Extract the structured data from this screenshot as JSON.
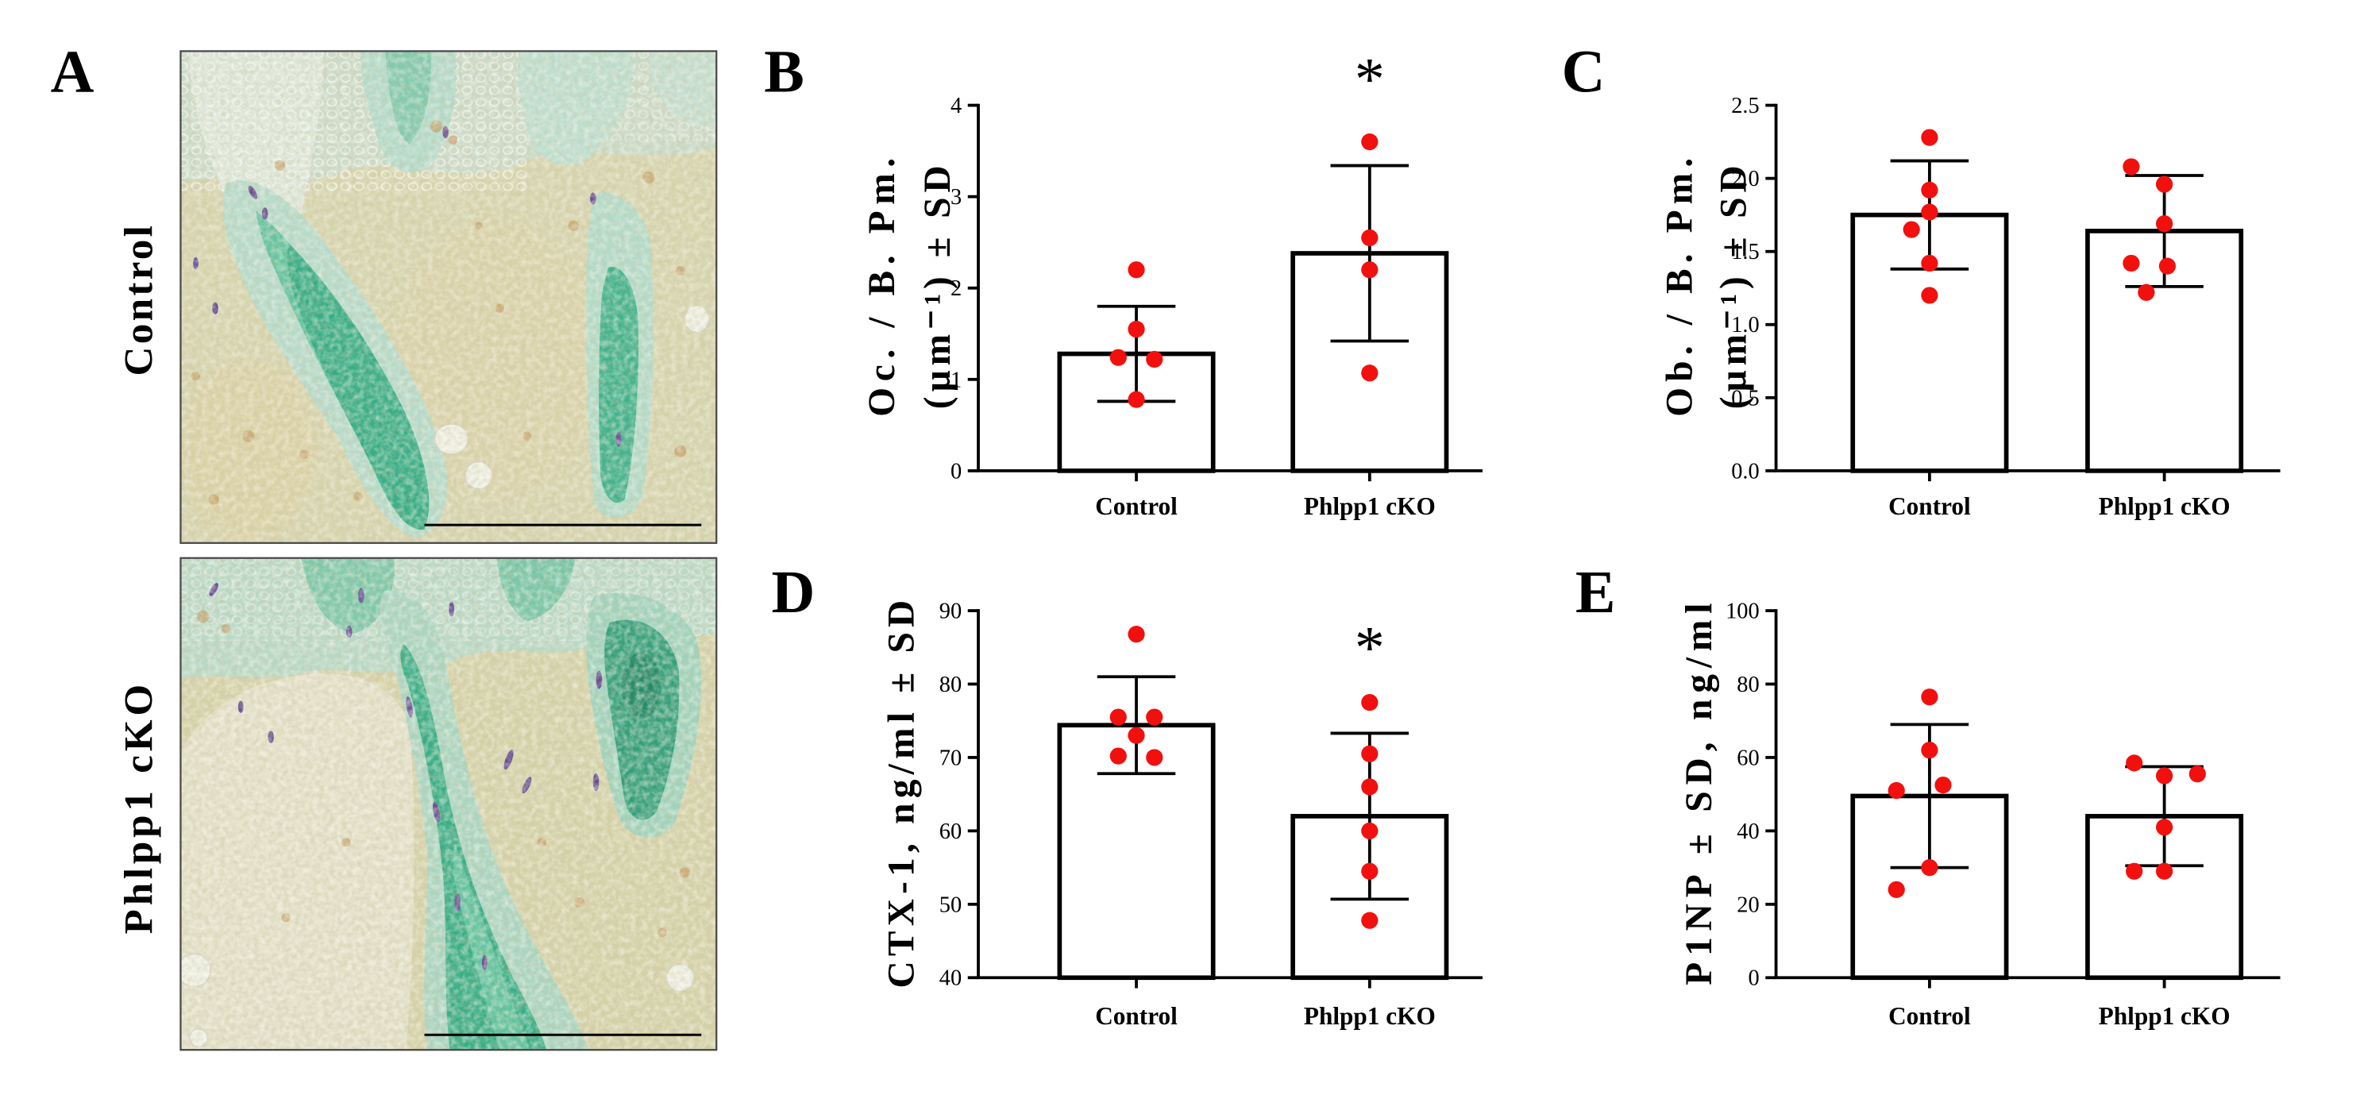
{
  "panel_a": {
    "label": "A",
    "images": [
      {
        "label": "Control"
      },
      {
        "label": "Phlpp1 cKO"
      }
    ]
  },
  "colors": {
    "point": "#f2100f",
    "bar_fill": "#ffffff",
    "axis": "#000000",
    "stain_green": "#35ae88"
  },
  "chart_data": [
    {
      "panel": "B",
      "type": "bar",
      "title": "",
      "categories": [
        "Control",
        "Phlpp1 cKO"
      ],
      "values": [
        1.28,
        2.38
      ],
      "error_sd": [
        0.52,
        0.96
      ],
      "points": [
        [
          2.2,
          1.55,
          1.24,
          1.22,
          0.78
        ],
        [
          3.6,
          2.55,
          2.2,
          1.07
        ]
      ],
      "significance": [
        null,
        "*"
      ],
      "xlabel": "",
      "ylabel": [
        "Oc. / B. Pm.",
        "(µm⁻¹) ± SD"
      ],
      "ylim": [
        0,
        4
      ],
      "yticks": [
        0,
        1,
        2,
        3,
        4
      ],
      "ytick_labels": [
        "0",
        "1",
        "2",
        "3",
        "4"
      ]
    },
    {
      "panel": "C",
      "type": "bar",
      "title": "",
      "categories": [
        "Control",
        "Phlpp1 cKO"
      ],
      "values": [
        1.75,
        1.64
      ],
      "error_sd": [
        0.37,
        0.38
      ],
      "points": [
        [
          2.28,
          1.92,
          1.77,
          1.65,
          1.42,
          1.2
        ],
        [
          2.08,
          1.96,
          1.69,
          1.42,
          1.4,
          1.22
        ]
      ],
      "significance": [
        null,
        null
      ],
      "xlabel": "",
      "ylabel": [
        "Ob. / B. Pm.",
        "(µm⁻¹) ± SD"
      ],
      "ylim": [
        0,
        2.5
      ],
      "yticks": [
        0,
        0.5,
        1,
        1.5,
        2,
        2.5
      ],
      "ytick_labels": [
        "0.0",
        "0.5",
        "1.0",
        "1.5",
        "2.0",
        "2.5"
      ]
    },
    {
      "panel": "D",
      "type": "bar",
      "title": "",
      "categories": [
        "Control",
        "Phlpp1 cKO"
      ],
      "values": [
        74.4,
        62.0
      ],
      "error_sd": [
        6.6,
        11.3
      ],
      "points": [
        [
          86.8,
          75.5,
          75.5,
          73,
          70.2,
          70
        ],
        [
          77.5,
          70.5,
          66,
          60,
          54.5,
          47.8
        ]
      ],
      "significance": [
        null,
        "*"
      ],
      "xlabel": "",
      "ylabel": [
        "CTX-1, ng/ml ± SD"
      ],
      "ylim": [
        40,
        90
      ],
      "yticks": [
        40,
        50,
        60,
        70,
        80,
        90
      ],
      "ytick_labels": [
        "40",
        "50",
        "60",
        "70",
        "80",
        "90"
      ]
    },
    {
      "panel": "E",
      "type": "bar",
      "title": "",
      "categories": [
        "Control",
        "Phlpp1 cKO"
      ],
      "values": [
        49.5,
        44.0
      ],
      "error_sd": [
        19.5,
        13.5
      ],
      "points": [
        [
          76.5,
          62,
          51,
          52.5,
          30,
          24
        ],
        [
          58.5,
          55,
          55.5,
          41,
          29,
          29
        ]
      ],
      "significance": [
        null,
        null
      ],
      "xlabel": "",
      "ylabel": [
        "P1NP ± SD, ng/ml"
      ],
      "ylim": [
        0,
        100
      ],
      "yticks": [
        0,
        20,
        40,
        60,
        80,
        100
      ],
      "ytick_labels": [
        "0",
        "20",
        "40",
        "60",
        "80",
        "100"
      ]
    }
  ]
}
